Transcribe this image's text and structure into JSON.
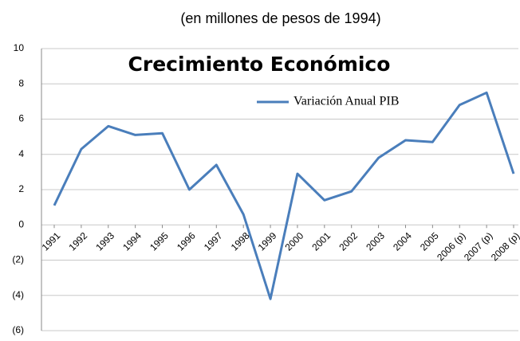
{
  "chart_data": {
    "type": "line",
    "title": "Crecimiento Económico",
    "subtitle": "(en millones de pesos de 1994)",
    "categories": [
      "1991",
      "1992",
      "1993",
      "1994",
      "1995",
      "1996",
      "1997",
      "1998",
      "1999",
      "2000",
      "2001",
      "2002",
      "2003",
      "2004",
      "2005",
      "2006 (p)",
      "2007 (p)",
      "2008 (p)"
    ],
    "series": [
      {
        "name": "Variación Anual PIB",
        "color": "#4a7ebb",
        "values": [
          1.1,
          4.3,
          5.6,
          5.1,
          5.2,
          2.0,
          3.4,
          0.6,
          -4.2,
          2.9,
          1.4,
          1.9,
          3.8,
          4.8,
          4.7,
          6.8,
          7.5,
          2.9
        ]
      }
    ],
    "ylim": [
      -6,
      10
    ],
    "yticks": [
      {
        "value": -6,
        "label": "(6)"
      },
      {
        "value": -4,
        "label": "(4)"
      },
      {
        "value": -2,
        "label": "(2)"
      },
      0,
      2,
      4,
      6,
      8,
      10
    ],
    "grid": true,
    "legend": "top-right"
  }
}
